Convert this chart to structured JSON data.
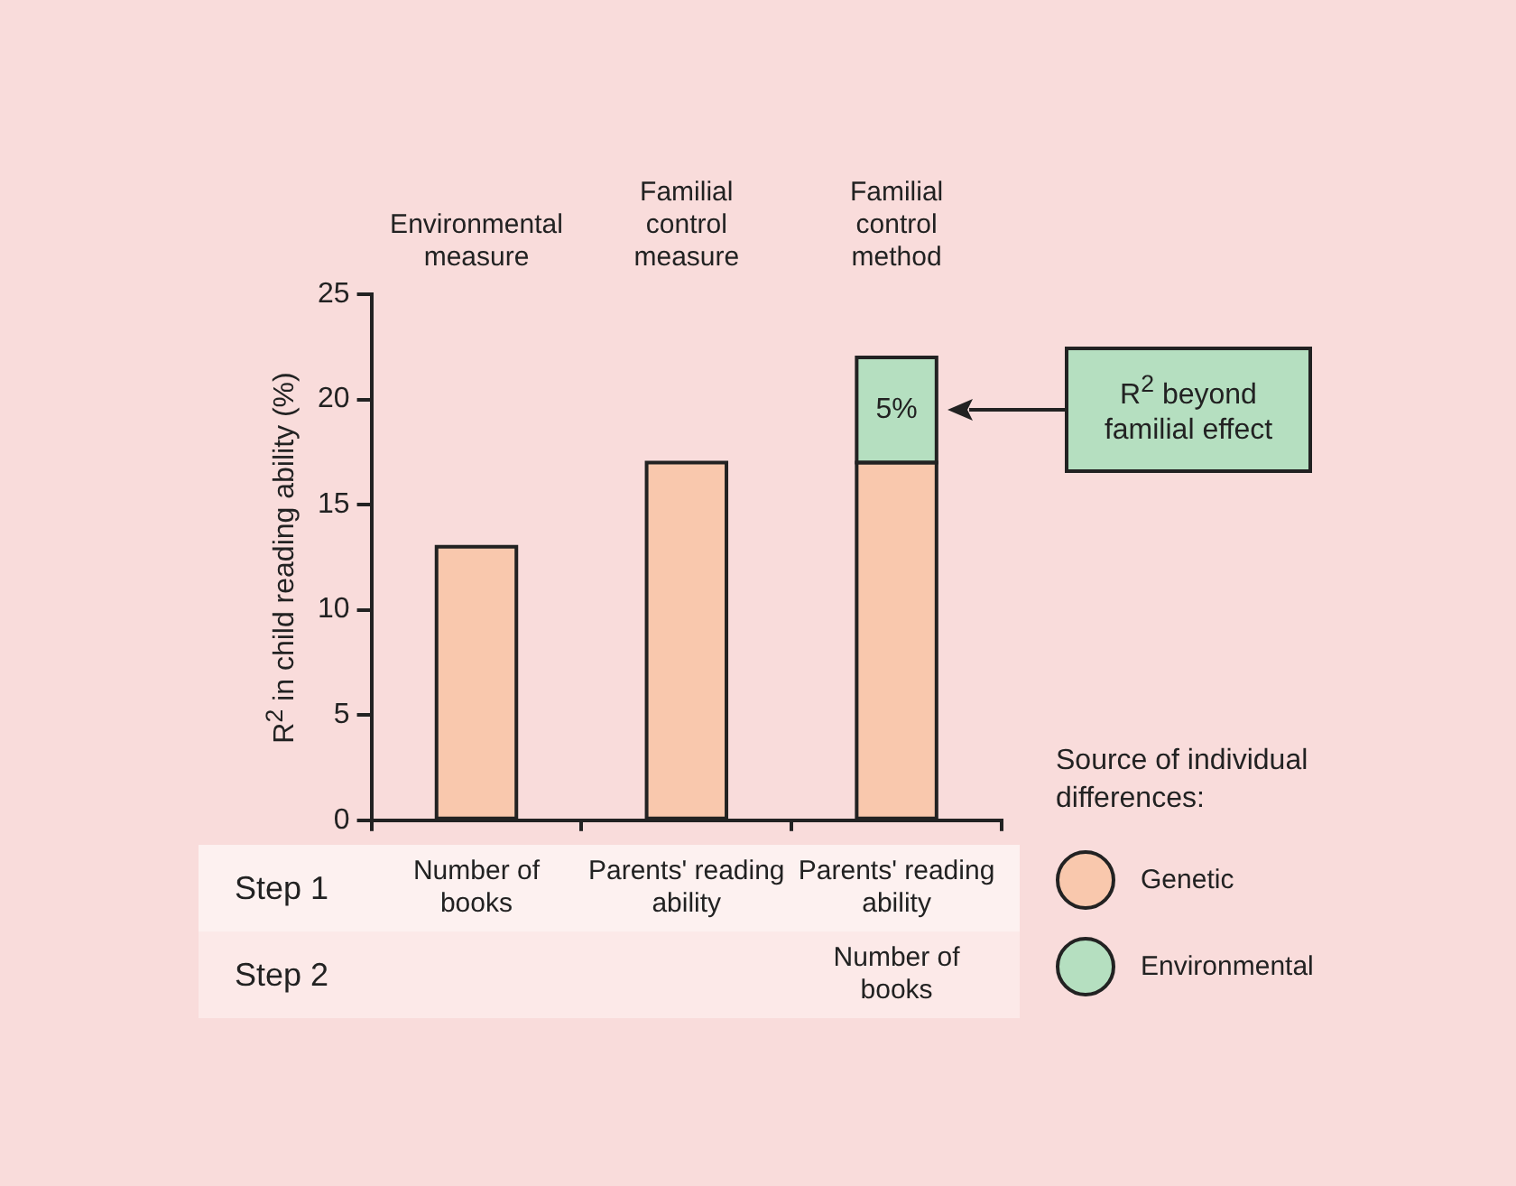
{
  "chart_data": {
    "type": "bar",
    "categories": [
      "Environmental measure",
      "Familial control measure",
      "Familial control method"
    ],
    "series": [
      {
        "name": "Genetic",
        "color": "#f9c8ad",
        "values": [
          13,
          17,
          17
        ]
      },
      {
        "name": "Environmental",
        "color": "#b5dfc0",
        "values": [
          null,
          null,
          5
        ],
        "value_labels": [
          null,
          null,
          "5%"
        ]
      }
    ],
    "stacked": true,
    "ylabel": "R$^{2}$ in child reading ability (%)",
    "ylim": [
      0,
      25
    ],
    "yticks": [
      0,
      5,
      10,
      15,
      20,
      25
    ],
    "legend": "bottom right",
    "legend_title": "Source of individual differences:",
    "annotations": [
      "R$^{2}$ beyond familial effect",
      "Step 1",
      "Number of books",
      "Parents' reading ability",
      "Parents' reading ability",
      "Step 2",
      "Number of books"
    ]
  }
}
